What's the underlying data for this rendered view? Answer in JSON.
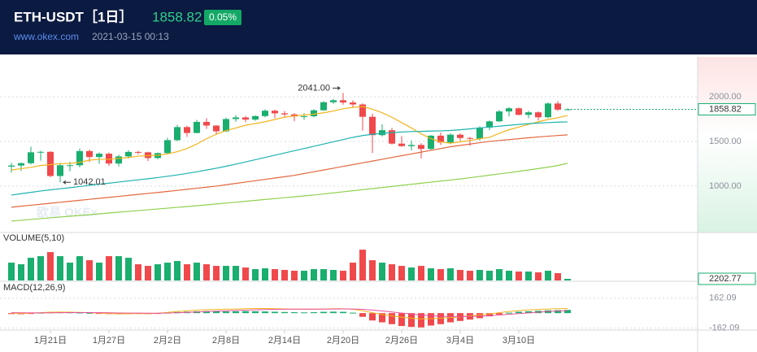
{
  "header": {
    "title": "ETH-USDT［1日］",
    "price": "1858.82",
    "change": "0.05%",
    "site": "www.okex.com",
    "time": "2021-03-15 00:13"
  },
  "chart_data": {
    "type": "candlestick",
    "watermark": "欧易 OKEx",
    "up_color": "#1aae6f",
    "down_color": "#f0494c",
    "categories": [
      null,
      null,
      null,
      null,
      "1月21日",
      null,
      null,
      null,
      null,
      null,
      "1月27日",
      null,
      null,
      null,
      null,
      null,
      "2月2日",
      null,
      null,
      null,
      null,
      null,
      "2月8日",
      null,
      null,
      null,
      null,
      null,
      "2月14日",
      null,
      null,
      null,
      null,
      null,
      "2月20日",
      null,
      null,
      null,
      null,
      null,
      "2月26日",
      null,
      null,
      null,
      null,
      null,
      "3月4日",
      null,
      null,
      null,
      null,
      null,
      "3月10日",
      null,
      null,
      null,
      null,
      null
    ],
    "open": [
      1218,
      1230,
      1256,
      1378,
      1383,
      1113,
      1233,
      1233,
      1392,
      1325,
      1362,
      1252,
      1332,
      1382,
      1378,
      1314,
      1369,
      1514,
      1660,
      1594,
      1718,
      1677,
      1613,
      1750,
      1768,
      1744,
      1783,
      1843,
      1814,
      1802,
      1779,
      1781,
      1848,
      1938,
      1960,
      1935,
      1913,
      1775,
      1570,
      1625,
      1475,
      1447,
      1460,
      1416,
      1564,
      1487,
      1575,
      1538,
      1531,
      1655,
      1724,
      1835,
      1870,
      1797,
      1825,
      1770,
      1924,
      1855
    ],
    "high": [
      1260,
      1265,
      1440,
      1395,
      1390,
      1260,
      1270,
      1420,
      1410,
      1375,
      1375,
      1350,
      1400,
      1395,
      1385,
      1375,
      1540,
      1685,
      1675,
      1740,
      1760,
      1680,
      1765,
      1795,
      1785,
      1790,
      1860,
      1855,
      1840,
      1815,
      1815,
      1860,
      1950,
      1975,
      2041.0,
      1960,
      1925,
      1810,
      1690,
      1650,
      1560,
      1510,
      1480,
      1570,
      1600,
      1590,
      1590,
      1550,
      1670,
      1735,
      1850,
      1885,
      1880,
      1840,
      1835,
      1935,
      1950,
      1870
    ],
    "low": [
      1150,
      1170,
      1240,
      1285,
      1100,
      1042.01,
      1165,
      1210,
      1270,
      1250,
      1225,
      1220,
      1310,
      1355,
      1280,
      1300,
      1355,
      1500,
      1550,
      1590,
      1640,
      1575,
      1605,
      1720,
      1715,
      1730,
      1770,
      1760,
      1770,
      1725,
      1740,
      1770,
      1840,
      1920,
      1910,
      1880,
      1620,
      1370,
      1555,
      1465,
      1440,
      1400,
      1310,
      1400,
      1460,
      1470,
      1505,
      1450,
      1510,
      1625,
      1715,
      1780,
      1790,
      1760,
      1735,
      1760,
      1840,
      1850
    ],
    "close": [
      1230,
      1256,
      1378,
      1383,
      1113,
      1233,
      1233,
      1392,
      1325,
      1362,
      1252,
      1332,
      1382,
      1378,
      1314,
      1369,
      1514,
      1660,
      1594,
      1718,
      1677,
      1613,
      1750,
      1768,
      1744,
      1783,
      1843,
      1814,
      1802,
      1779,
      1781,
      1848,
      1938,
      1960,
      1935,
      1913,
      1775,
      1570,
      1625,
      1475,
      1447,
      1460,
      1416,
      1564,
      1487,
      1575,
      1538,
      1531,
      1655,
      1724,
      1835,
      1870,
      1797,
      1825,
      1770,
      1924,
      1855,
      1858.82
    ],
    "series": [
      {
        "color": "#f2b51c",
        "values": [
          1180,
          1195,
          1210,
          1230,
          1240,
          1250,
          1255,
          1265,
          1290,
          1300,
          1300,
          1310,
          1320,
          1335,
          1340,
          1345,
          1360,
          1385,
          1420,
          1470,
          1530,
          1580,
          1620,
          1650,
          1680,
          1700,
          1720,
          1745,
          1770,
          1785,
          1795,
          1805,
          1820,
          1840,
          1865,
          1880,
          1890,
          1860,
          1820,
          1770,
          1710,
          1650,
          1585,
          1530,
          1495,
          1480,
          1495,
          1510,
          1530,
          1545,
          1590,
          1630,
          1660,
          1690,
          1720,
          1745,
          1765,
          1790
        ]
      },
      {
        "color": "#1db3ae",
        "values": [
          900,
          915,
          930,
          945,
          958,
          970,
          982,
          995,
          1008,
          1020,
          1032,
          1045,
          1058,
          1070,
          1082,
          1095,
          1110,
          1125,
          1142,
          1160,
          1180,
          1200,
          1222,
          1245,
          1270,
          1295,
          1320,
          1345,
          1370,
          1395,
          1420,
          1445,
          1470,
          1495,
          1520,
          1545,
          1565,
          1580,
          1590,
          1598,
          1605,
          1610,
          1612,
          1615,
          1618,
          1622,
          1630,
          1640,
          1650,
          1660,
          1670,
          1680,
          1690,
          1698,
          1705,
          1710,
          1715,
          1718
        ]
      },
      {
        "color": "#e3683f",
        "values": [
          764,
          775,
          786,
          797,
          808,
          819,
          830,
          841,
          852,
          863,
          874,
          885,
          896,
          907,
          918,
          929,
          940,
          952,
          964,
          976,
          988,
          1000,
          1015,
          1030,
          1045,
          1060,
          1075,
          1090,
          1105,
          1120,
          1140,
          1160,
          1180,
          1200,
          1220,
          1240,
          1260,
          1280,
          1300,
          1320,
          1340,
          1360,
          1380,
          1400,
          1420,
          1440,
          1455,
          1470,
          1485,
          1500,
          1510,
          1520,
          1530,
          1540,
          1550,
          1558,
          1566,
          1573
        ]
      },
      {
        "color": "#8fd14f",
        "values": [
          609,
          618,
          627,
          636,
          645,
          654,
          663,
          672,
          681,
          690,
          699,
          708,
          717,
          726,
          735,
          744,
          753,
          762,
          771,
          780,
          790,
          800,
          810,
          820,
          830,
          840,
          850,
          860,
          870,
          880,
          890,
          900,
          912,
          924,
          936,
          948,
          960,
          972,
          984,
          996,
          1008,
          1020,
          1032,
          1044,
          1056,
          1068,
          1080,
          1094,
          1108,
          1122,
          1136,
          1150,
          1165,
          1180,
          1196,
          1212,
          1230,
          1255
        ]
      }
    ],
    "ylim": [
      490,
      2445
    ],
    "yticks": [
      {
        "value": 1000,
        "label": "1000.00"
      },
      {
        "value": 1500,
        "label": "1500.00"
      },
      {
        "value": 2000,
        "label": "2000.00"
      }
    ],
    "grid": true,
    "annotations": {
      "high": "2041.00",
      "low": "1042.01"
    },
    "volume": {
      "title": "VOLUME(5,10)",
      "ylim": [
        0,
        64000
      ],
      "values": [
        24200,
        22000,
        30800,
        33000,
        38500,
        33000,
        24200,
        33000,
        27500,
        24200,
        33000,
        33000,
        30800,
        22000,
        19800,
        22000,
        24200,
        26400,
        22000,
        24200,
        22000,
        19800,
        19800,
        19800,
        17600,
        15400,
        16500,
        15400,
        14300,
        13200,
        13200,
        15400,
        15400,
        14300,
        13200,
        24200,
        41800,
        27500,
        24200,
        22000,
        19800,
        17600,
        19800,
        16500,
        15400,
        16500,
        14300,
        13200,
        14300,
        13200,
        15400,
        13200,
        12100,
        12100,
        11000,
        13200,
        9900,
        2202.77
      ]
    },
    "macd": {
      "title": "MACD(12,26,9)",
      "ylim": [
        -175,
        337
      ],
      "yticks": [
        162.09,
        -162.09
      ],
      "hist": [
        -10,
        -12,
        -8,
        5,
        8,
        10,
        8,
        6,
        3,
        -5,
        -10,
        -12,
        -10,
        -8,
        -10,
        -5,
        5,
        12,
        15,
        20,
        22,
        20,
        18,
        20,
        22,
        20,
        18,
        15,
        12,
        10,
        8,
        10,
        14,
        16,
        14,
        5,
        -40,
        -80,
        -100,
        -120,
        -140,
        -150,
        -155,
        -135,
        -120,
        -100,
        -85,
        -70,
        -55,
        -35,
        -15,
        5,
        15,
        20,
        25,
        30,
        32,
        35
      ],
      "dif": {
        "color": "#f2b51c",
        "values": [
          0,
          -5,
          0,
          5,
          10,
          12,
          10,
          8,
          5,
          0,
          -5,
          -8,
          -6,
          -4,
          -6,
          -2,
          8,
          18,
          25,
          32,
          38,
          40,
          42,
          45,
          48,
          50,
          50,
          48,
          46,
          44,
          42,
          42,
          45,
          48,
          48,
          42,
          25,
          5,
          -15,
          -30,
          -45,
          -55,
          -62,
          -60,
          -55,
          -48,
          -40,
          -30,
          -20,
          -8,
          5,
          18,
          28,
          35,
          40,
          45,
          48,
          50
        ]
      },
      "dea": {
        "color": "#e84f9b",
        "values": [
          5,
          4,
          3,
          3,
          4,
          5,
          6,
          6,
          6,
          5,
          4,
          2,
          1,
          0,
          -1,
          -1,
          1,
          4,
          8,
          12,
          17,
          21,
          25,
          29,
          33,
          36,
          39,
          41,
          42,
          43,
          43,
          43,
          44,
          45,
          46,
          45,
          41,
          34,
          24,
          13,
          1,
          -10,
          -21,
          -29,
          -34,
          -37,
          -38,
          -36,
          -33,
          -28,
          -21,
          -13,
          -5,
          3,
          10,
          17,
          23,
          28
        ]
      }
    }
  }
}
